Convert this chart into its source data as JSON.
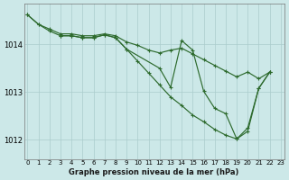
{
  "bg_color": "#cce8e8",
  "grid_color": "#aacccc",
  "line_color": "#2d6a2d",
  "xlabel": "Graphe pression niveau de la mer (hPa)",
  "ylim": [
    1011.6,
    1014.85
  ],
  "xlim": [
    -0.3,
    23.3
  ],
  "yticks": [
    1012,
    1013,
    1014
  ],
  "xticks": [
    0,
    1,
    2,
    3,
    4,
    5,
    6,
    7,
    8,
    9,
    10,
    11,
    12,
    13,
    14,
    15,
    16,
    17,
    18,
    19,
    20,
    21,
    22,
    23
  ],
  "line_top": {
    "x": [
      0,
      1,
      2,
      3,
      4,
      5,
      6,
      7,
      8,
      9,
      10,
      11,
      12,
      13,
      14,
      15,
      16,
      17,
      18,
      19,
      20,
      21,
      22
    ],
    "y": [
      1014.62,
      1014.42,
      1014.32,
      1014.22,
      1014.22,
      1014.18,
      1014.18,
      1014.22,
      1014.18,
      1014.05,
      1013.98,
      1013.88,
      1013.82,
      1013.88,
      1013.92,
      1013.8,
      1013.68,
      1013.56,
      1013.44,
      1013.32,
      1013.42,
      1013.28,
      1013.42
    ]
  },
  "line_diag": {
    "x": [
      0,
      1,
      2,
      3,
      4,
      5,
      6,
      7,
      8,
      9,
      10,
      11,
      12,
      13,
      14,
      15,
      16,
      17,
      18,
      19,
      20,
      21,
      22
    ],
    "y": [
      1014.62,
      1014.42,
      1014.28,
      1014.18,
      1014.18,
      1014.14,
      1014.14,
      1014.2,
      1014.14,
      1013.9,
      1013.65,
      1013.4,
      1013.15,
      1012.9,
      1012.72,
      1012.52,
      1012.38,
      1012.22,
      1012.1,
      1012.02,
      1012.18,
      1013.08,
      1013.42
    ]
  },
  "line_mid": {
    "x": [
      3,
      4,
      5,
      6,
      7,
      8,
      9,
      12,
      13,
      14,
      15,
      16,
      17,
      18,
      19,
      20,
      21,
      22
    ],
    "y": [
      1014.18,
      1014.18,
      1014.14,
      1014.14,
      1014.2,
      1014.14,
      1013.9,
      1013.5,
      1013.1,
      1014.08,
      1013.88,
      1013.02,
      1012.66,
      1012.55,
      1012.02,
      1012.25,
      1013.08,
      1013.42
    ]
  }
}
